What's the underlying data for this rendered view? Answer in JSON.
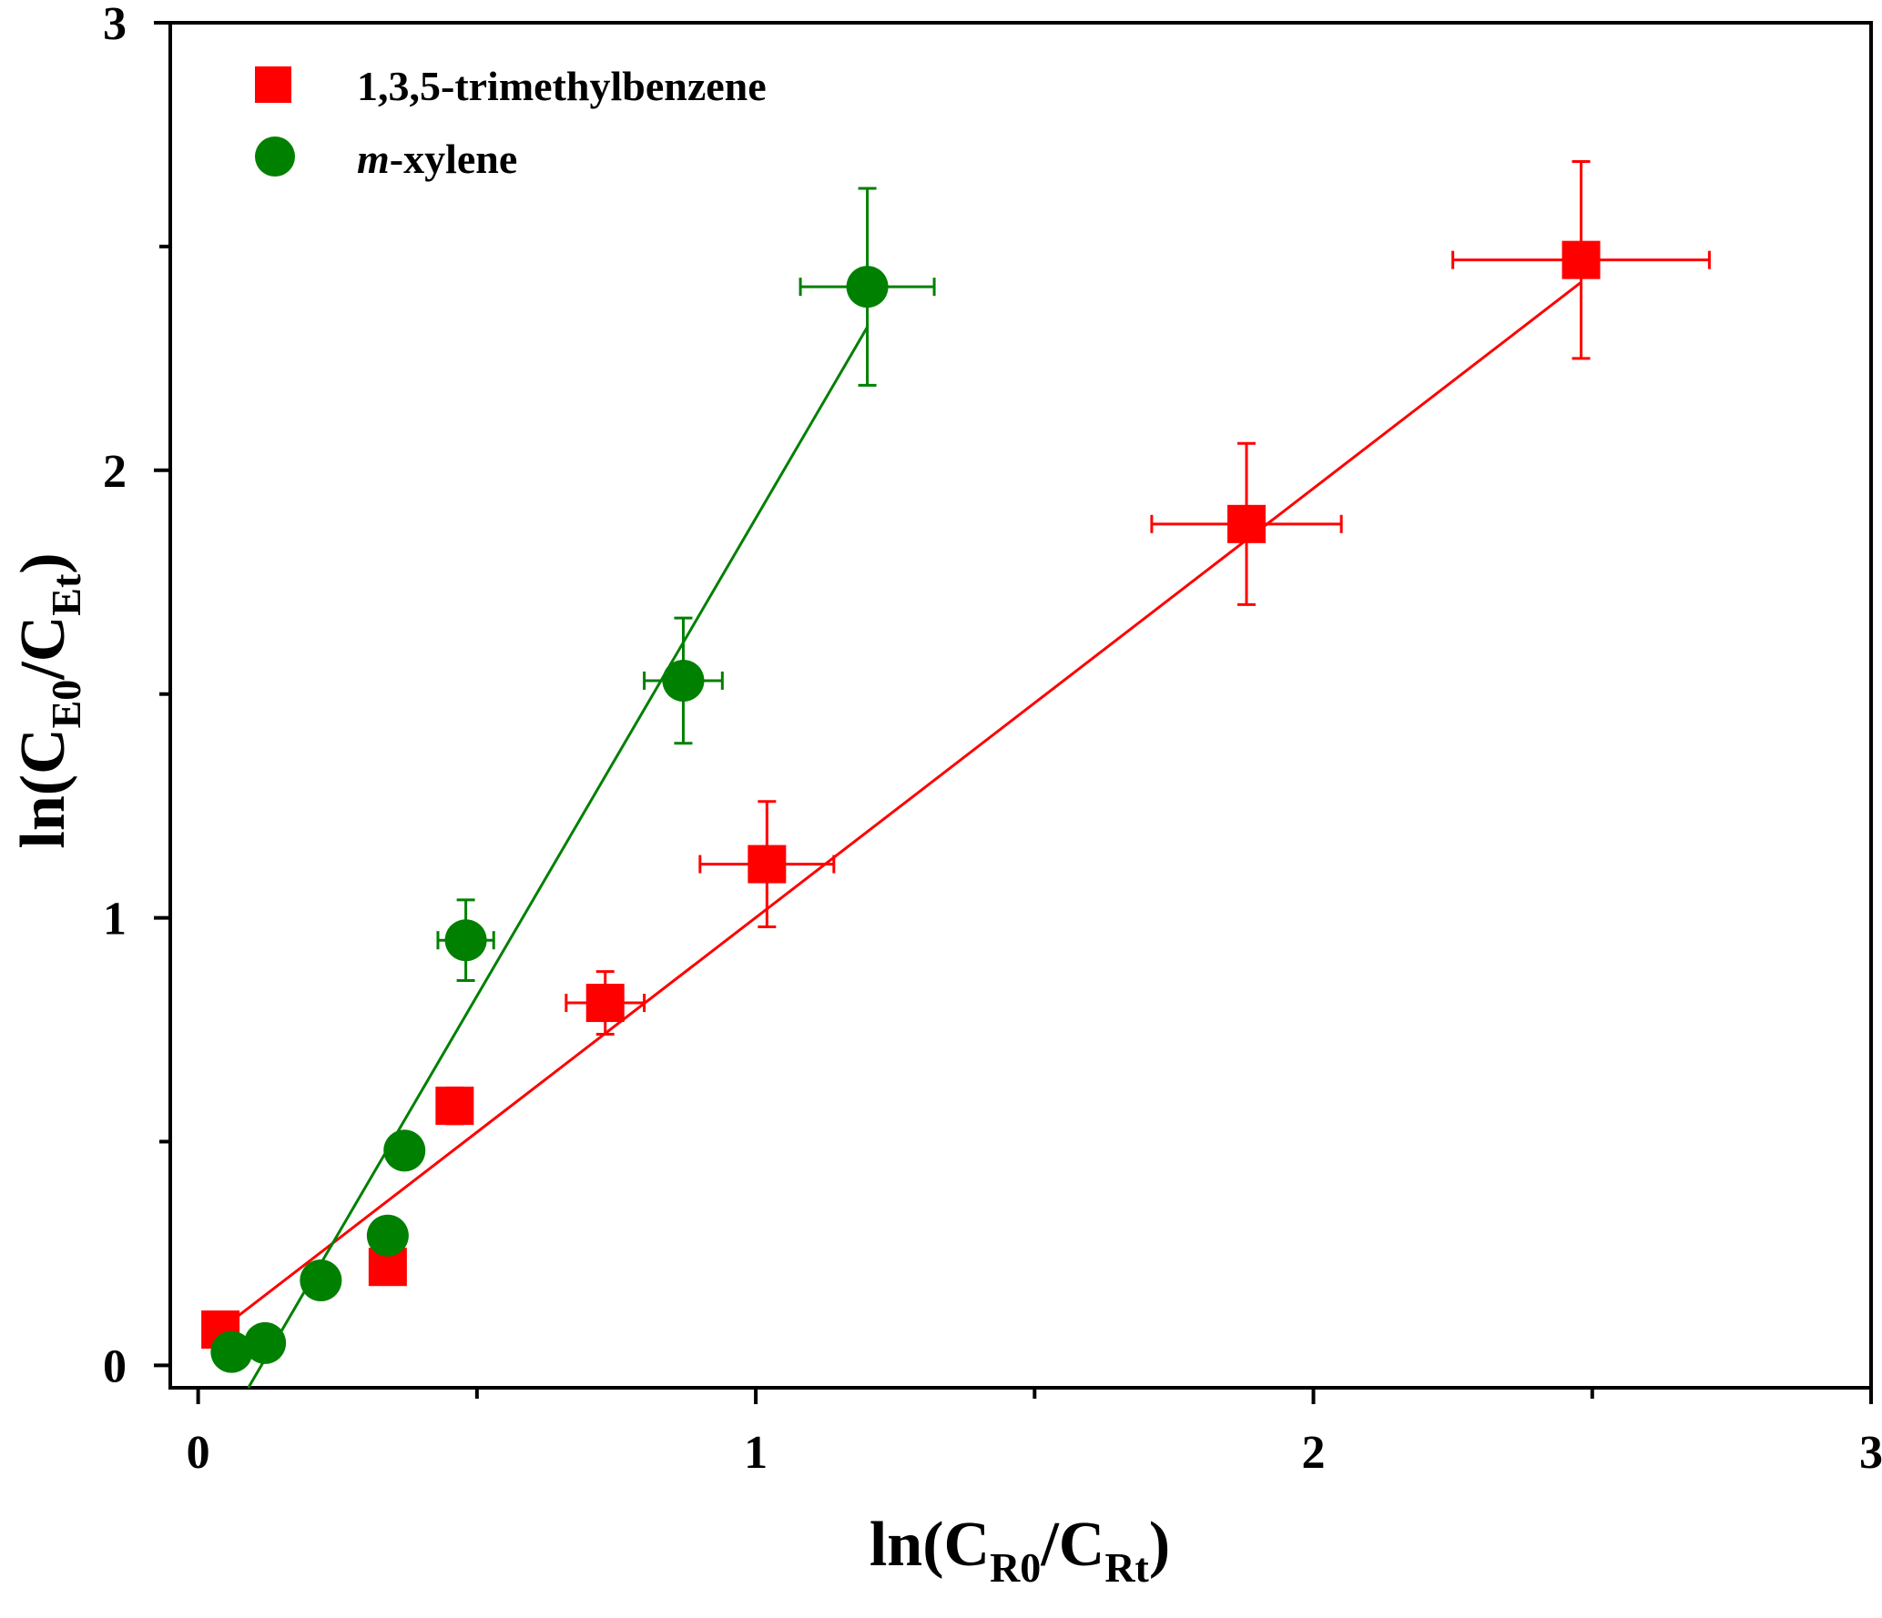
{
  "chart_data": {
    "type": "scatter",
    "xlabel": {
      "base": "ln(C",
      "sub1": "R0",
      "mid": "/C",
      "sub2": "Rt",
      "end": ")"
    },
    "ylabel": {
      "base": "ln(C",
      "sub1": "E0",
      "mid": "/C",
      "sub2": "Et",
      "end": ")"
    },
    "xlim": [
      -0.05,
      3.0
    ],
    "ylim": [
      -0.05,
      3.0
    ],
    "x_ticks": [
      0,
      1,
      2,
      3
    ],
    "y_ticks": [
      0,
      1,
      2,
      3
    ],
    "x_tick_labels": [
      "0",
      "1",
      "2",
      "3"
    ],
    "y_tick_labels": [
      "0",
      "1",
      "2",
      "3"
    ],
    "minor_ticks": true,
    "grid": false,
    "legend_position": "top-left",
    "series": [
      {
        "name": "1,3,5-trimethylbenzene",
        "marker": "square",
        "color": "#ff0000",
        "points": [
          {
            "x": 0.04,
            "y": 0.08
          },
          {
            "x": 0.34,
            "y": 0.22
          },
          {
            "x": 0.46,
            "y": 0.58,
            "xerr": 0.03,
            "yerr": 0.04
          },
          {
            "x": 0.73,
            "y": 0.81,
            "xerr": 0.07,
            "yerr": 0.07
          },
          {
            "x": 1.02,
            "y": 1.12,
            "xerr": 0.12,
            "yerr": 0.14
          },
          {
            "x": 1.88,
            "y": 1.88,
            "xerr": 0.17,
            "yerr": 0.18
          },
          {
            "x": 2.48,
            "y": 2.47,
            "xerr": 0.23,
            "yerr": 0.22
          }
        ],
        "fit": {
          "x0": 0.04,
          "y0": 0.08,
          "x1": 2.48,
          "y1": 2.42
        }
      },
      {
        "name": "m-xylene",
        "name_italic": "m",
        "name_rest": "-xylene",
        "marker": "circle",
        "color": "#008000",
        "points": [
          {
            "x": 0.06,
            "y": 0.03
          },
          {
            "x": 0.12,
            "y": 0.05
          },
          {
            "x": 0.22,
            "y": 0.19
          },
          {
            "x": 0.34,
            "y": 0.29
          },
          {
            "x": 0.37,
            "y": 0.48
          },
          {
            "x": 0.48,
            "y": 0.95,
            "xerr": 0.05,
            "yerr": 0.09
          },
          {
            "x": 0.87,
            "y": 1.53,
            "xerr": 0.07,
            "yerr": 0.14
          },
          {
            "x": 1.2,
            "y": 2.41,
            "xerr": 0.12,
            "yerr": 0.22
          }
        ],
        "fit": {
          "x0": 0.09,
          "y0": -0.05,
          "x1": 1.2,
          "y1": 2.32
        }
      }
    ]
  }
}
